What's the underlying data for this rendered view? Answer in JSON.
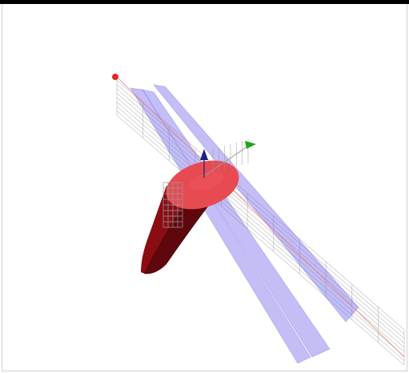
{
  "viewport": {
    "background": "#ffffff",
    "frame_color": "#000000"
  },
  "scene": {
    "colors": {
      "cone_body": "#8b0d14",
      "cone_shadow": "#5e070c",
      "cone_top": "#e84a52",
      "cone_top_highlight": "#f05a60",
      "plane_fill": "#6f63e6",
      "grid_line": "#9a9a9a",
      "axis_x": "#e0282e",
      "axis_y": "#1aa81a",
      "axis_z": "#1a237e",
      "axis_line": "#f08080"
    },
    "axes": [
      {
        "name": "x-axis-arrow",
        "color_key": "axis_x"
      },
      {
        "name": "y-axis-arrow",
        "color_key": "axis_y"
      },
      {
        "name": "z-axis-arrow",
        "color_key": "axis_z"
      }
    ],
    "plane_count": 3
  }
}
